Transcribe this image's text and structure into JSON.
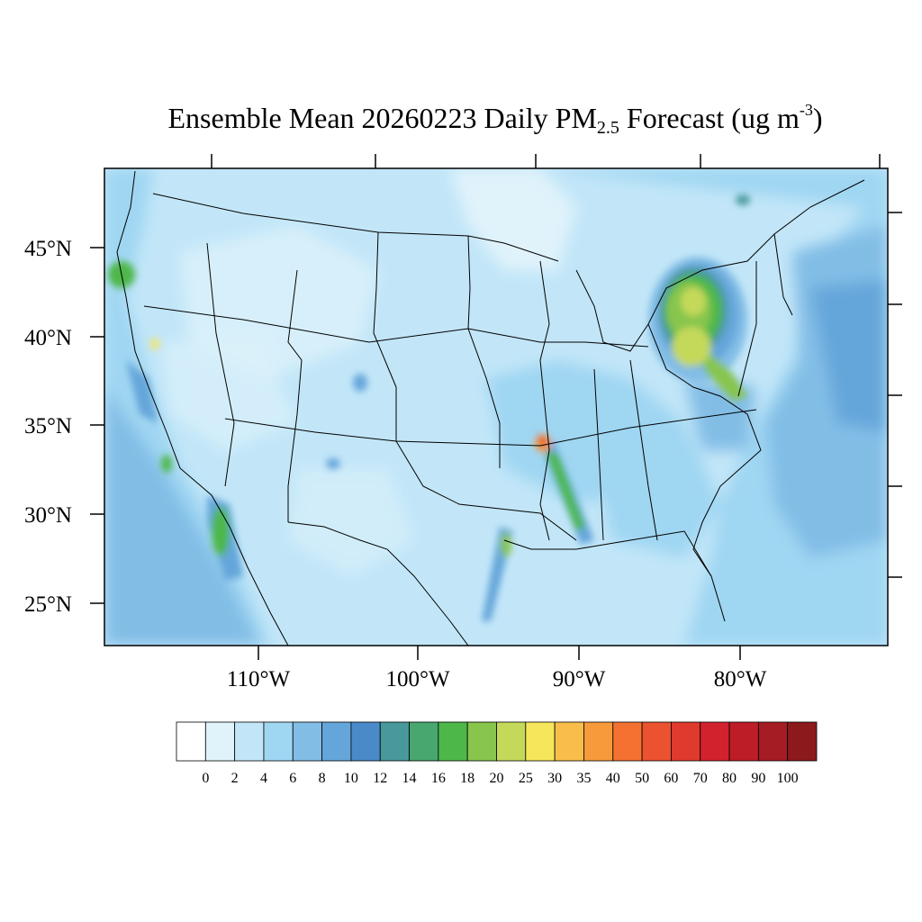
{
  "title": {
    "main": "Ensemble Mean 20260223 Daily PM",
    "subscript": "2.5",
    "rest": " Forecast (ug m",
    "superscript": "-3",
    "end": ")"
  },
  "map": {
    "lat_labels": [
      "45°N",
      "40°N",
      "35°N",
      "30°N",
      "25°N"
    ],
    "lon_labels": [
      "110°W",
      "100°W",
      "90°W",
      "80°W"
    ],
    "background_color": "#c7e6f7",
    "ocean_color": "#8fc8ea"
  },
  "colorbar": {
    "levels": [
      "0",
      "2",
      "4",
      "6",
      "8",
      "10",
      "12",
      "14",
      "16",
      "18",
      "20",
      "25",
      "30",
      "35",
      "40",
      "50",
      "60",
      "70",
      "80",
      "90",
      "100"
    ],
    "colors": [
      "#ffffff",
      "#e0f3fb",
      "#c2e6f8",
      "#9fd6f2",
      "#82bde6",
      "#65a6da",
      "#4a8ac9",
      "#48999b",
      "#47a76f",
      "#4eb74a",
      "#87c54d",
      "#c4d95a",
      "#f6e65b",
      "#f9be4a",
      "#f79a3c",
      "#f47131",
      "#ea5230",
      "#df3a2d",
      "#d2222d",
      "#bd1d27",
      "#a51c24",
      "#8c1a1d"
    ]
  }
}
